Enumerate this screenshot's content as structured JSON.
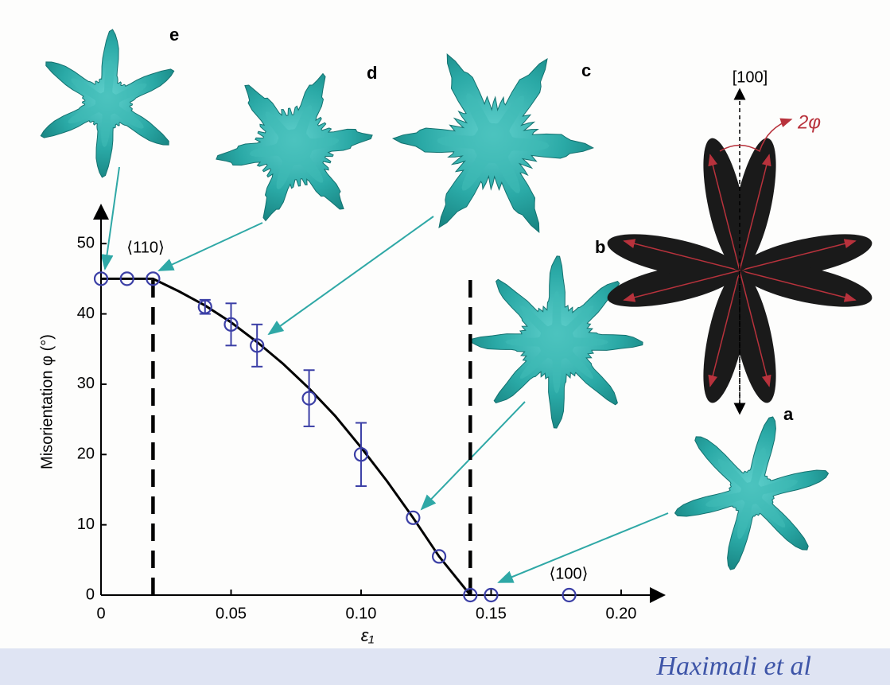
{
  "chart_data": {
    "type": "scatter",
    "ylabel": "Misorientation φ (°)",
    "xlabel": "ε₁",
    "xlim": [
      0,
      0.215
    ],
    "ylim": [
      0,
      55
    ],
    "xticks": [
      0,
      0.05,
      {
        "value": 0.1,
        "label": "0.10"
      },
      0.15,
      {
        "value": 0.2,
        "label": "0.20"
      }
    ],
    "yticks": [
      0,
      10,
      20,
      30,
      40,
      50
    ],
    "points": {
      "color": "#3b3fa6",
      "x": [
        0,
        0.01,
        0.02,
        0.04,
        0.05,
        0.06,
        0.08,
        0.1,
        0.12,
        0.13,
        0.142,
        0.15,
        0.18
      ],
      "y": [
        45,
        45,
        45,
        41,
        38.5,
        35.5,
        28,
        20,
        11,
        5.5,
        0,
        0,
        0
      ],
      "error": [
        null,
        null,
        null,
        1,
        3,
        3,
        4,
        4.5,
        null,
        null,
        null,
        null,
        null
      ]
    },
    "fit": {
      "color": "#000000",
      "x": [
        0,
        0.02,
        0.03,
        0.04,
        0.05,
        0.06,
        0.07,
        0.08,
        0.09,
        0.1,
        0.11,
        0.12,
        0.13,
        0.142
      ],
      "y": [
        45,
        45,
        43.2,
        41.2,
        38.8,
        36,
        32.9,
        29.4,
        25.5,
        21,
        16.2,
        11,
        5.5,
        0
      ]
    },
    "boundaries": [
      0.02,
      0.142
    ],
    "annotations": [
      "⟨110⟩",
      "⟨100⟩"
    ],
    "panel_labels": [
      "a",
      "b",
      "c",
      "d",
      "e"
    ],
    "direction_label": "[100]",
    "angle_label": "2φ"
  },
  "footer": "Haximali et al"
}
